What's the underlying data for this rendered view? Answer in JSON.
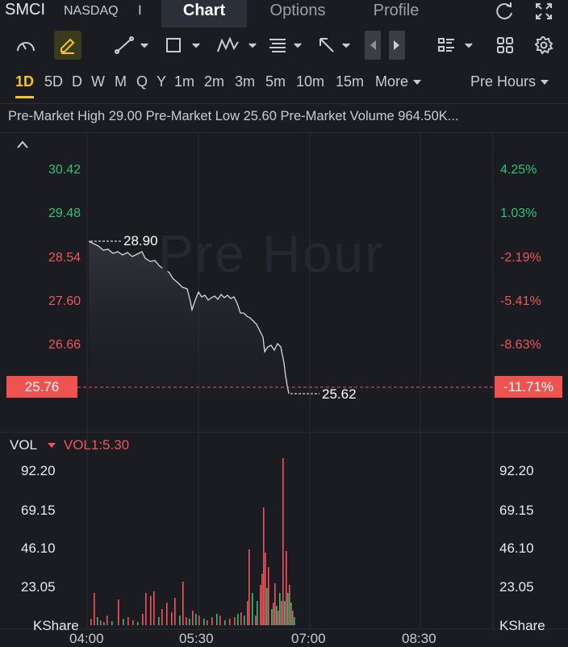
{
  "header": {
    "symbol": "SMCI",
    "exchange": "NASDAQ",
    "separator": "I",
    "tabs": [
      {
        "label": "Chart",
        "active": true
      },
      {
        "label": "Options",
        "active": false
      },
      {
        "label": "Profile",
        "active": false
      }
    ],
    "icons": [
      "refresh-icon",
      "fullscreen-icon"
    ]
  },
  "toolbar": {
    "tools": [
      "speedometer-icon",
      "draw-pen-icon",
      "trend-line-icon",
      "rectangle-icon",
      "pattern-icon",
      "text-note-icon",
      "arrow-icon",
      "step-back-icon",
      "step-forward-icon",
      "indicator-list-icon",
      "layout-grid-icon",
      "settings-gear-icon"
    ]
  },
  "periods": {
    "items": [
      "1D",
      "5D",
      "D",
      "W",
      "M",
      "Q",
      "Y",
      "1m",
      "2m",
      "3m",
      "5m",
      "10m",
      "15m"
    ],
    "active": "1D",
    "more_label": "More",
    "session_label": "Pre Hours"
  },
  "info_bar": {
    "text": "Pre-Market High 29.00 Pre-Market Low 25.60 Pre-Market Volume 964.50K..."
  },
  "price_chart": {
    "watermark": "Pre Hour",
    "left_axis": [
      {
        "label": "30.42",
        "color": "#33c17a"
      },
      {
        "label": "29.48",
        "color": "#33c17a"
      },
      {
        "label": "28.54",
        "color": "#f0565b"
      },
      {
        "label": "27.60",
        "color": "#f0565b"
      },
      {
        "label": "26.66",
        "color": "#f0565b"
      }
    ],
    "right_axis": [
      {
        "label": "4.25%",
        "color": "#33c17a"
      },
      {
        "label": "1.03%",
        "color": "#33c17a"
      },
      {
        "label": "-2.19%",
        "color": "#f0565b"
      },
      {
        "label": "-5.41%",
        "color": "#f0565b"
      },
      {
        "label": "-8.63%",
        "color": "#f0565b"
      }
    ],
    "current_price": "25.76",
    "current_change": "-11.71%",
    "high_annotation": "28.90",
    "low_annotation": "25.62",
    "collapse_icon": "chevron-up-icon"
  },
  "volume_chart": {
    "indicator_label": "VOL",
    "value_label": "VOL1:5.30",
    "left_axis": [
      "92.20",
      "69.15",
      "46.10",
      "23.05"
    ],
    "right_axis": [
      "92.20",
      "69.15",
      "46.10",
      "23.05"
    ],
    "unit_left": "KShare",
    "unit_right": "KShare"
  },
  "time_axis": [
    "04:00",
    "05:30",
    "07:00",
    "08:30"
  ],
  "colors": {
    "up": "#33c17a",
    "down": "#f0565b",
    "accent": "#f5c518",
    "background": "#1a1c21"
  }
}
